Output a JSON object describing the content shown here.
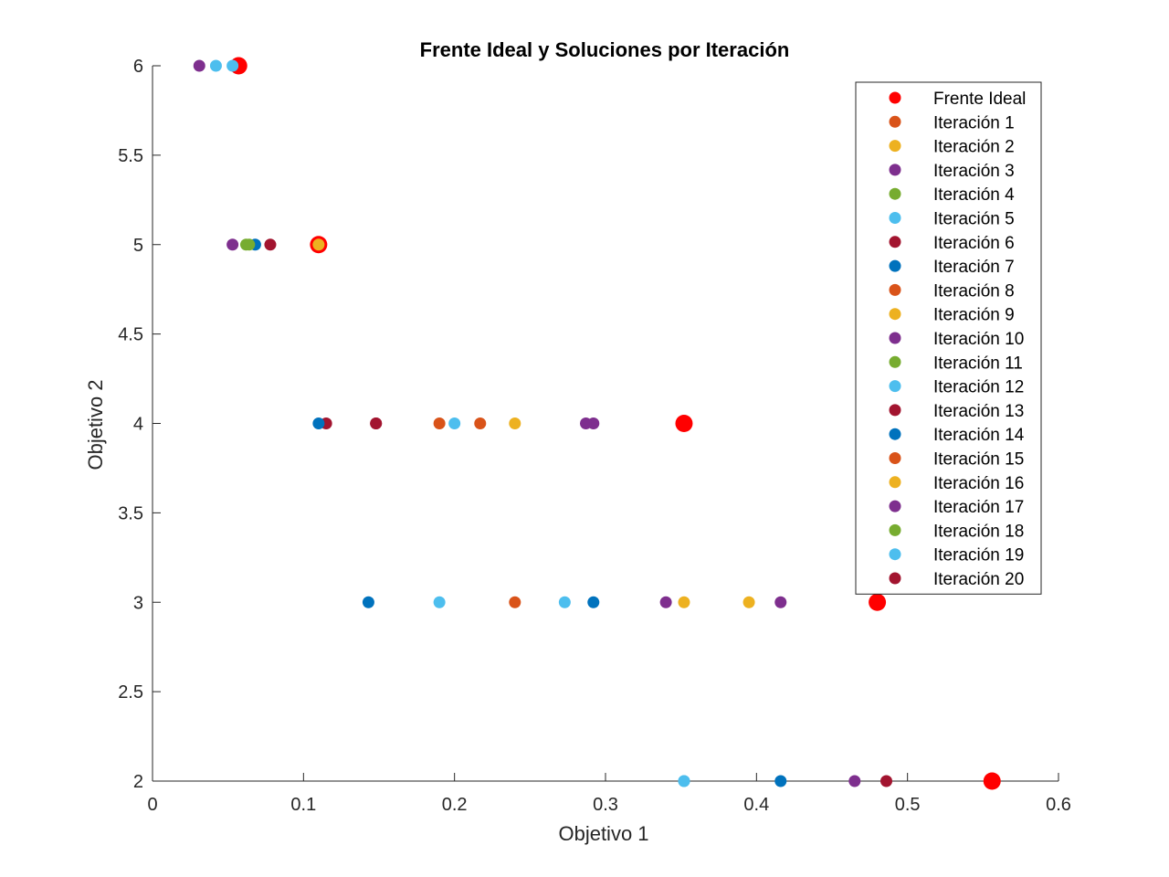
{
  "chart_data": {
    "type": "scatter",
    "title": "Frente Ideal y Soluciones por Iteración",
    "xlabel": "Objetivo 1",
    "ylabel": "Objetivo 2",
    "xlim": [
      0,
      0.6
    ],
    "ylim": [
      2,
      6
    ],
    "xticks": [
      0,
      0.1,
      0.2,
      0.3,
      0.4,
      0.5,
      0.6
    ],
    "xtick_labels": [
      "0",
      "0.1",
      "0.2",
      "0.3",
      "0.4",
      "0.5",
      "0.6"
    ],
    "yticks": [
      2,
      2.5,
      3,
      3.5,
      4,
      4.5,
      5,
      5.5,
      6
    ],
    "ytick_labels": [
      "2",
      "2.5",
      "3",
      "3.5",
      "4",
      "4.5",
      "5",
      "5.5",
      "6"
    ],
    "legend_position": "top-right",
    "series": [
      {
        "name": "Frente Ideal",
        "color": "#ff0000",
        "marker": "large",
        "points": [
          [
            0.057,
            6
          ],
          [
            0.11,
            5
          ],
          [
            0.352,
            4
          ],
          [
            0.48,
            3
          ],
          [
            0.556,
            2
          ]
        ]
      },
      {
        "name": "Iteración 1",
        "color": "#d95319",
        "points": [
          [
            0.19,
            4
          ]
        ]
      },
      {
        "name": "Iteración 2",
        "color": "#edb120",
        "points": [
          [
            0.11,
            5
          ],
          [
            0.352,
            3
          ]
        ]
      },
      {
        "name": "Iteración 3",
        "color": "#7e2f8e",
        "points": [
          [
            0.031,
            6
          ],
          [
            0.292,
            4
          ]
        ]
      },
      {
        "name": "Iteración 4",
        "color": "#77ac30",
        "points": [
          [
            0.062,
            5
          ]
        ]
      },
      {
        "name": "Iteración 5",
        "color": "#4dbeee",
        "points": [
          [
            0.042,
            6
          ],
          [
            0.2,
            4
          ]
        ]
      },
      {
        "name": "Iteración 6",
        "color": "#a2142f",
        "points": [
          [
            0.115,
            4
          ],
          [
            0.486,
            2
          ]
        ]
      },
      {
        "name": "Iteración 7",
        "color": "#0072bd",
        "points": [
          [
            0.068,
            5
          ],
          [
            0.143,
            3
          ]
        ]
      },
      {
        "name": "Iteración 8",
        "color": "#d95319",
        "points": [
          [
            0.217,
            4
          ]
        ]
      },
      {
        "name": "Iteración 9",
        "color": "#edb120",
        "points": [
          [
            0.24,
            4
          ]
        ]
      },
      {
        "name": "Iteración 10",
        "color": "#7e2f8e",
        "points": [
          [
            0.053,
            5
          ],
          [
            0.287,
            4
          ]
        ]
      },
      {
        "name": "Iteración 11",
        "color": "#77ac30",
        "points": [
          [
            0.064,
            5
          ]
        ]
      },
      {
        "name": "Iteración 12",
        "color": "#4dbeee",
        "points": [
          [
            0.19,
            3
          ],
          [
            0.352,
            2
          ]
        ]
      },
      {
        "name": "Iteración 13",
        "color": "#a2142f",
        "points": [
          [
            0.078,
            5
          ],
          [
            0.148,
            4
          ]
        ]
      },
      {
        "name": "Iteración 14",
        "color": "#0072bd",
        "points": [
          [
            0.11,
            4
          ],
          [
            0.292,
            3
          ],
          [
            0.416,
            2
          ]
        ]
      },
      {
        "name": "Iteración 15",
        "color": "#d95319",
        "points": [
          [
            0.24,
            3
          ]
        ]
      },
      {
        "name": "Iteración 16",
        "color": "#edb120",
        "points": [
          [
            0.395,
            3
          ]
        ]
      },
      {
        "name": "Iteración 17",
        "color": "#7e2f8e",
        "points": [
          [
            0.34,
            3
          ],
          [
            0.416,
            3
          ],
          [
            0.465,
            2
          ]
        ]
      },
      {
        "name": "Iteración 18",
        "color": "#77ac30",
        "points": []
      },
      {
        "name": "Iteración 19",
        "color": "#4dbeee",
        "points": [
          [
            0.053,
            6
          ],
          [
            0.273,
            3
          ],
          [
            0.352,
            2
          ]
        ]
      },
      {
        "name": "Iteración 20",
        "color": "#a2142f",
        "points": [
          [
            0.148,
            4
          ]
        ]
      }
    ]
  }
}
